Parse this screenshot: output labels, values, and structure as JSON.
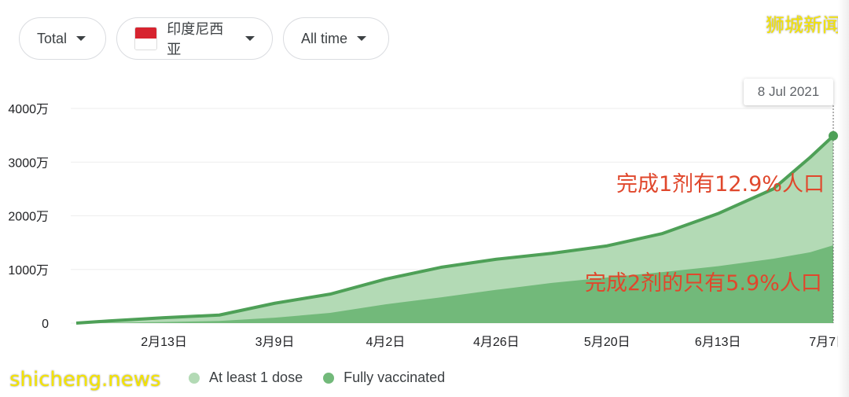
{
  "filters": {
    "metric": "Total",
    "country": "印度尼西亚",
    "range": "All time"
  },
  "watermarks": {
    "top": "狮城新闻",
    "bottom": "shicheng.news"
  },
  "tooltip": {
    "date": "8 Jul 2021"
  },
  "annotations": {
    "one_dose": "完成1剂有12.9%人口",
    "two_dose": "完成2剂的只有5.9%人口"
  },
  "colors": {
    "line": "#4ea057",
    "at_least_one": "#b3dab5",
    "fully": "#72b97a",
    "grid": "#eeeeee",
    "annotation": "#e0472c"
  },
  "chart_data": {
    "type": "area",
    "title": "",
    "xlabel": "",
    "ylabel": "",
    "ylim": [
      0,
      40000000
    ],
    "yticks": [
      {
        "value": 0,
        "label": "0"
      },
      {
        "value": 10000000,
        "label": "1000万"
      },
      {
        "value": 20000000,
        "label": "2000万"
      },
      {
        "value": 30000000,
        "label": "3000万"
      },
      {
        "value": 40000000,
        "label": "4000万"
      }
    ],
    "xlim": [
      "2021-01-25",
      "2021-07-08"
    ],
    "xticks": [
      {
        "date": "2021-02-13",
        "label": "2月13日"
      },
      {
        "date": "2021-03-09",
        "label": "3月9日"
      },
      {
        "date": "2021-04-02",
        "label": "4月2日"
      },
      {
        "date": "2021-04-26",
        "label": "4月26日"
      },
      {
        "date": "2021-05-20",
        "label": "5月20日"
      },
      {
        "date": "2021-06-13",
        "label": "6月13日"
      },
      {
        "date": "2021-07-07",
        "label": "7月7日"
      }
    ],
    "grid": true,
    "legend": "bottom-left",
    "x": [
      "2021-01-25",
      "2021-02-01",
      "2021-02-13",
      "2021-02-25",
      "2021-03-09",
      "2021-03-21",
      "2021-04-02",
      "2021-04-14",
      "2021-04-26",
      "2021-05-08",
      "2021-05-20",
      "2021-06-01",
      "2021-06-13",
      "2021-06-25",
      "2021-07-03",
      "2021-07-08"
    ],
    "series": [
      {
        "name": "At least 1 dose",
        "values": [
          0,
          400000,
          1000000,
          1500000,
          3700000,
          5400000,
          8200000,
          10400000,
          11900000,
          13000000,
          14400000,
          16700000,
          20400000,
          25000000,
          30900000,
          34900000
        ]
      },
      {
        "name": "Fully vaccinated",
        "values": [
          0,
          50000,
          200000,
          400000,
          1000000,
          1900000,
          3500000,
          4800000,
          6200000,
          7500000,
          8500000,
          9500000,
          10600000,
          12000000,
          13200000,
          14500000
        ]
      }
    ]
  }
}
